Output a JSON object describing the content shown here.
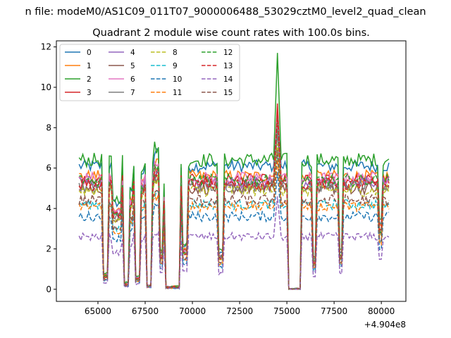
{
  "figure": {
    "suptitle": "n file: modeM0/AS1C09_011T07_9000006488_53029cztM0_level2_quad_clean",
    "offset_label": "+4.904e8"
  },
  "chart_data": {
    "type": "line",
    "title": "Quadrant 2 module wise count rates with 100.0s bins.",
    "xlabel": "",
    "ylabel": "",
    "x_offset": 490400000,
    "xlim": [
      62800,
      81300
    ],
    "ylim": [
      -0.6,
      12.3
    ],
    "x_ticks": [
      65000,
      67500,
      70000,
      72500,
      75000,
      77500,
      80000
    ],
    "x_tick_labels": [
      "65000",
      "67500",
      "70000",
      "72500",
      "75000",
      "77500",
      "80000"
    ],
    "y_ticks": [
      0,
      2,
      4,
      6,
      8,
      10,
      12
    ],
    "y_tick_labels": [
      "0",
      "2",
      "4",
      "6",
      "8",
      "10",
      "12"
    ],
    "x_start": 64000,
    "x_end": 80400,
    "bin_size": 100,
    "grid": false,
    "legend_position": "upper-left",
    "legend_columns": 4,
    "series": [
      {
        "name": "0",
        "color": "#1f77b4",
        "dash": "solid",
        "level": 6.1,
        "peak": 8.7,
        "noise": 0.3
      },
      {
        "name": "1",
        "color": "#ff7f0e",
        "dash": "solid",
        "level": 5.6,
        "peak": 8.8,
        "noise": 0.3
      },
      {
        "name": "2",
        "color": "#2ca02c",
        "dash": "solid",
        "level": 6.4,
        "peak": 11.7,
        "noise": 0.35
      },
      {
        "name": "3",
        "color": "#d62728",
        "dash": "solid",
        "level": 5.4,
        "peak": 9.2,
        "noise": 0.3
      },
      {
        "name": "4",
        "color": "#9467bd",
        "dash": "solid",
        "level": 5.3,
        "peak": 8.6,
        "noise": 0.3
      },
      {
        "name": "5",
        "color": "#8c564b",
        "dash": "solid",
        "level": 5.0,
        "peak": 7.8,
        "noise": 0.3
      },
      {
        "name": "6",
        "color": "#e377c2",
        "dash": "solid",
        "level": 5.5,
        "peak": 8.3,
        "noise": 0.3
      },
      {
        "name": "7",
        "color": "#7f7f7f",
        "dash": "solid",
        "level": 5.1,
        "peak": 7.9,
        "noise": 0.3
      },
      {
        "name": "8",
        "color": "#bcbd22",
        "dash": "dashed",
        "level": 4.9,
        "peak": 7.2,
        "noise": 0.3
      },
      {
        "name": "9",
        "color": "#17becf",
        "dash": "dashed",
        "level": 4.2,
        "peak": 6.6,
        "noise": 0.25
      },
      {
        "name": "10",
        "color": "#1f77b4",
        "dash": "dashed",
        "level": 3.6,
        "peak": 5.8,
        "noise": 0.25
      },
      {
        "name": "11",
        "color": "#ff7f0e",
        "dash": "dashed",
        "level": 4.1,
        "peak": 6.4,
        "noise": 0.25
      },
      {
        "name": "12",
        "color": "#2ca02c",
        "dash": "dashed",
        "level": 5.4,
        "peak": 8.5,
        "noise": 0.3
      },
      {
        "name": "13",
        "color": "#d62728",
        "dash": "dashed",
        "level": 5.2,
        "peak": 8.6,
        "noise": 0.3
      },
      {
        "name": "14",
        "color": "#9467bd",
        "dash": "dashed",
        "level": 2.6,
        "peak": 4.6,
        "noise": 0.2
      },
      {
        "name": "15",
        "color": "#8c564b",
        "dash": "dashed",
        "level": 4.4,
        "peak": 6.9,
        "noise": 0.3
      }
    ]
  }
}
